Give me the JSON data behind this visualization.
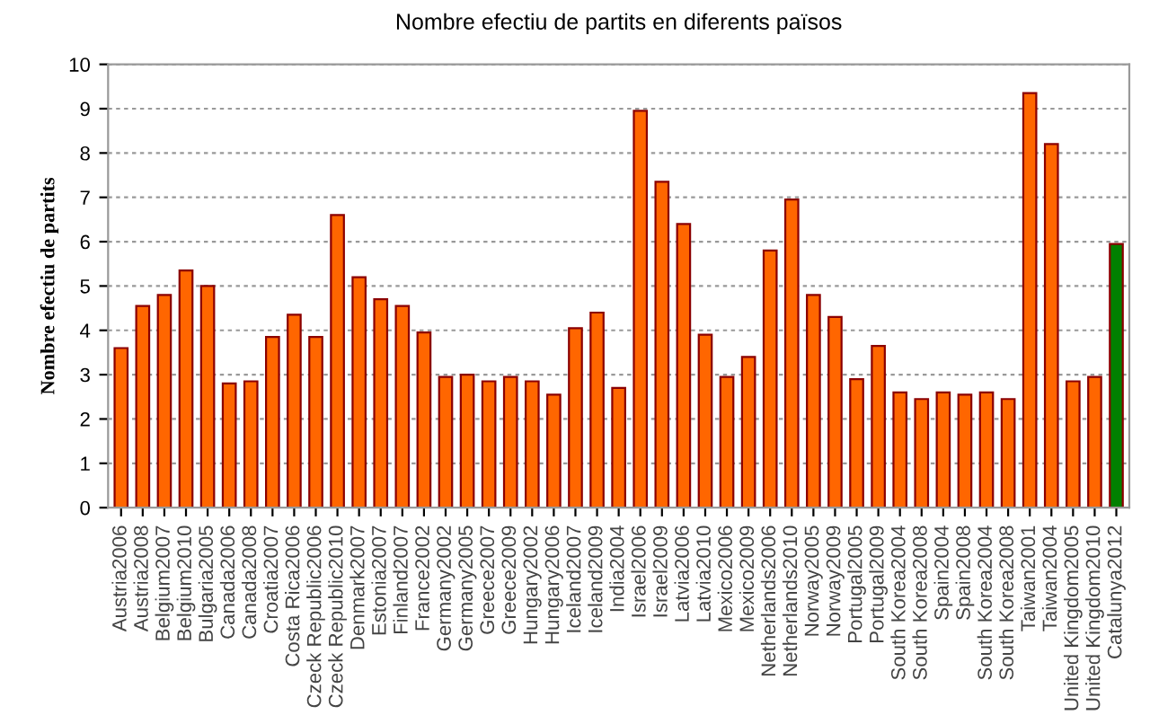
{
  "chart_data": {
    "type": "bar",
    "title": "Nombre efectiu de partits en diferents països",
    "ylabel": "Nombre efectiu de partits",
    "categories": [
      "Austria2006",
      "Austria2008",
      "Belgium2007",
      "Belgium2010",
      "Bulgaria2005",
      "Canada2006",
      "Canada2008",
      "Croatia2007",
      "Costa Rica2006",
      "Czeck Republic2006",
      "Czeck Republic2010",
      "Denmark2007",
      "Estonia2007",
      "Finland2007",
      "France2002",
      "Germany2002",
      "Germany2005",
      "Greece2007",
      "Greece2009",
      "Hungary2002",
      "Hungary2006",
      "Iceland2007",
      "Iceland2009",
      "India2004",
      "Israel2006",
      "Israel2009",
      "Latvia2006",
      "Latvia2010",
      "Mexico2006",
      "Mexico2009",
      "Netherlands2006",
      "Netherlands2010",
      "Norway2005",
      "Norway2009",
      "Portugal2005",
      "Portugal2009",
      "South Korea2004",
      "South Korea2008",
      "Spain2004",
      "Spain2008",
      "South Korea2004",
      "South Korea2008",
      "Taiwan2001",
      "Taiwan2004",
      "United Kingdom2005",
      "United Kingdom2010",
      "Catalunya2012"
    ],
    "values": [
      3.6,
      4.55,
      4.8,
      5.35,
      5.0,
      2.8,
      2.85,
      3.85,
      4.35,
      3.85,
      6.6,
      5.2,
      4.7,
      4.55,
      3.95,
      2.95,
      3.0,
      2.85,
      2.95,
      2.85,
      2.55,
      4.05,
      4.4,
      2.7,
      8.95,
      7.35,
      6.4,
      3.9,
      2.95,
      3.4,
      5.8,
      6.95,
      4.8,
      4.3,
      2.9,
      3.65,
      2.6,
      2.45,
      2.6,
      2.55,
      2.6,
      2.45,
      9.35,
      8.2,
      2.85,
      2.95,
      5.95
    ],
    "colors": [
      "#ff6600",
      "#ff6600",
      "#ff6600",
      "#ff6600",
      "#ff6600",
      "#ff6600",
      "#ff6600",
      "#ff6600",
      "#ff6600",
      "#ff6600",
      "#ff6600",
      "#ff6600",
      "#ff6600",
      "#ff6600",
      "#ff6600",
      "#ff6600",
      "#ff6600",
      "#ff6600",
      "#ff6600",
      "#ff6600",
      "#ff6600",
      "#ff6600",
      "#ff6600",
      "#ff6600",
      "#ff6600",
      "#ff6600",
      "#ff6600",
      "#ff6600",
      "#ff6600",
      "#ff6600",
      "#ff6600",
      "#ff6600",
      "#ff6600",
      "#ff6600",
      "#ff6600",
      "#ff6600",
      "#ff6600",
      "#ff6600",
      "#ff6600",
      "#ff6600",
      "#ff6600",
      "#ff6600",
      "#ff6600",
      "#ff6600",
      "#ff6600",
      "#ff6600",
      "#008000"
    ],
    "ylim": [
      0,
      10
    ],
    "yticks": [
      0,
      1,
      2,
      3,
      4,
      5,
      6,
      7,
      8,
      9,
      10
    ],
    "grid": "y",
    "legend": false
  }
}
